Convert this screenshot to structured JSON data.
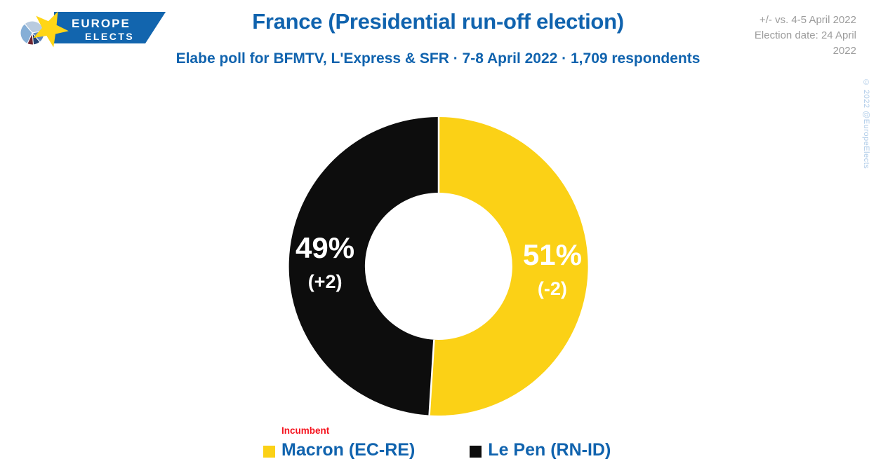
{
  "brand": {
    "name_line1": "EUROPE",
    "name_line2": "ELECTS"
  },
  "header": {
    "title": "France (Presidential run-off election)",
    "subtitle": "Elabe poll for BFMTV, L'Express & SFR · 7-8 April 2022 · 1,709 respondents",
    "comparison_note": "+/- vs. 4-5 April 2022",
    "election_note": "Election date: 24 April 2022"
  },
  "watermark": "© 2022 @EuropeElects",
  "legend": {
    "incumbent_label": "Incumbent"
  },
  "colors": {
    "accent_blue": "#1063AE",
    "macron_yellow": "#FBD116",
    "lepen_black": "#0D0D0D",
    "incumbent_red": "#F5121D",
    "note_gray": "#9C9C9C",
    "watermark_blue": "#AECBE8",
    "label_white": "#FFFFFF"
  },
  "chart_data": {
    "type": "pie",
    "style": "donut",
    "title": "France (Presidential run-off election)",
    "subtitle": "Elabe poll for BFMTV, L'Express & SFR · 7-8 April 2022 · 1,709 respondents",
    "units": "%",
    "start_angle_deg": 0,
    "direction": "clockwise",
    "legend_position": "bottom",
    "slices": [
      {
        "label": "Macron (EC-RE)",
        "value": 51,
        "change": "(-2)",
        "color": "#FBD116",
        "text_color": "#FFFFFF",
        "incumbent": true
      },
      {
        "label": "Le Pen (RN-ID)",
        "value": 49,
        "change": "(+2)",
        "color": "#0D0D0D",
        "text_color": "#FFFFFF",
        "incumbent": false
      }
    ]
  }
}
